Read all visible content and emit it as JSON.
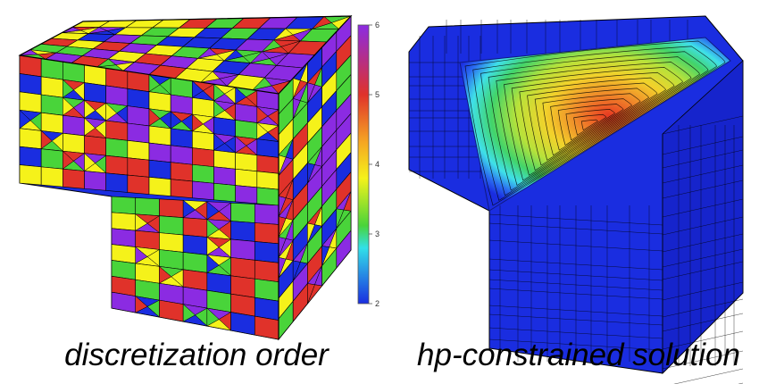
{
  "colorbar": {
    "ticks": [
      "6",
      "5",
      "4",
      "3",
      "2"
    ],
    "colors": {
      "top": "#8b2be2",
      "red": "#e0322a",
      "orange": "#f5a623",
      "yellow": "#f5f21a",
      "green": "#49d43a",
      "cyan": "#32e0e8",
      "blue": "#1a2de0"
    }
  },
  "panels": {
    "left": {
      "caption": "discretization order"
    },
    "right": {
      "caption": "hp-constrained solution"
    }
  }
}
